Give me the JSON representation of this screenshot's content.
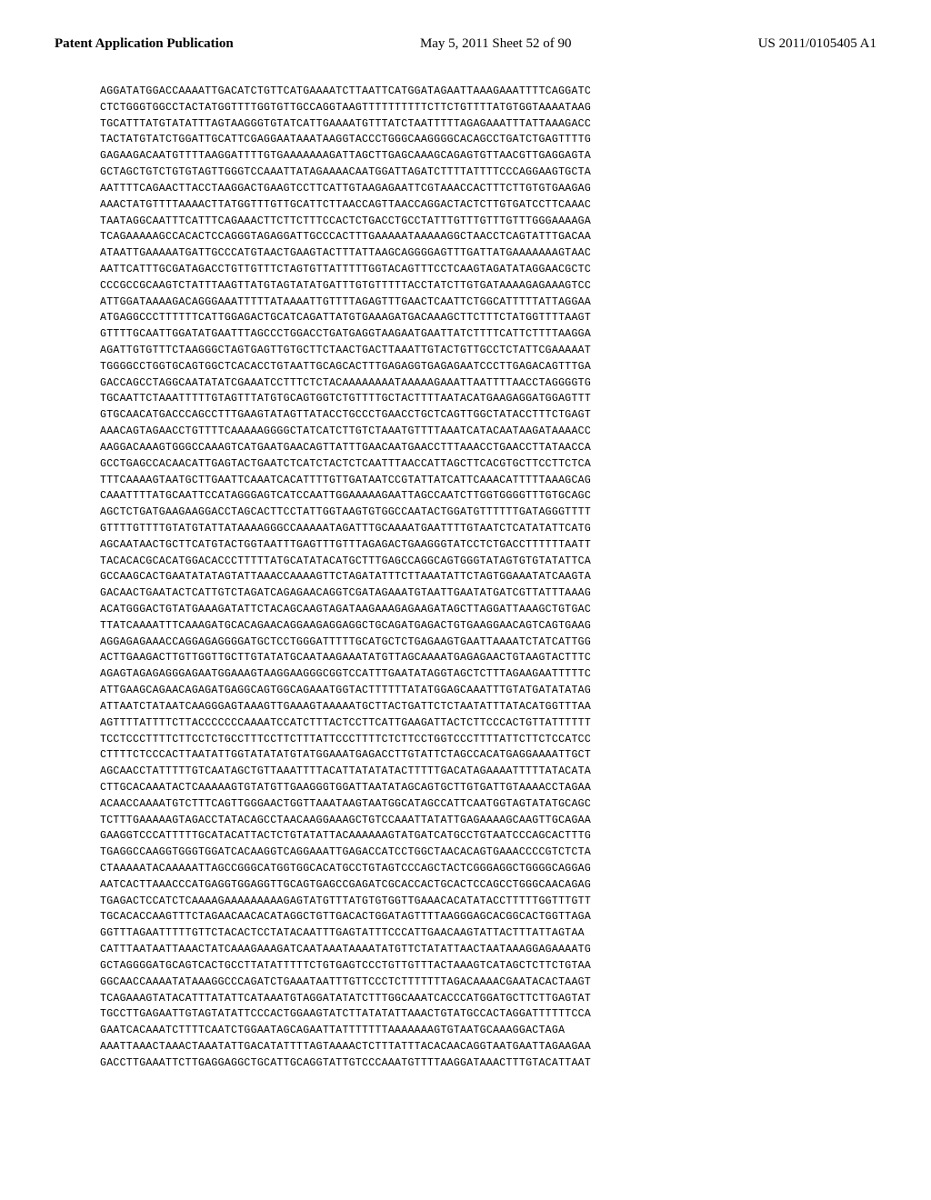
{
  "header": {
    "left": "Patent Application Publication",
    "center": "May 5, 2011  Sheet 52 of 90",
    "right": "US 2011/0105405 A1"
  },
  "sequence": {
    "font_family": "Courier New",
    "font_size": 11.5,
    "line_height": 1.55,
    "color": "#000000",
    "background": "#ffffff",
    "lines": [
      "AGGATATGGACCAAAATTGACATCTGTTCATGAAAATCTTAATTCATGGATAGAATTAAAGAAATTTTCAGGATC",
      "CTCTGGGTGGCCTACTATGGTTTTGGTGTTGCCAGGTAAGTTTTTTTTTTCTTCTGTTTTATGTGGTAAAATAAG",
      "TGCATTTATGTATATTTAGTAAGGGTGTATCATTGAAAATGTTTATCTAATTTTTAGAGAAATTTATTAAAGACC",
      "TACTATGTATCTGGATTGCATTCGAGGAATAAATAAGGTACCCTGGGCAAGGGGCACAGCCTGATCTGAGTTTTG",
      "GAGAAGACAATGTTTTAAGGATTTTGTGAAAAAAAGATTAGCTTGAGCAAAGCAGAGTGTTAACGTTGAGGAGTA",
      "GCTAGCTGTCTGTGTAGTTGGGTCCAAATTATAGAAAACAATGGATTAGATCTTTTATTTTCCCAGGAAGTGCTA",
      "AATTTTCAGAACTTACCTAAGGACTGAAGTCCTTCATTGTAAGAGAATTCGTAAACCACTTTCTTGTGTGAAGAG",
      "AAACTATGTTTTAAAACTTATGGTTTGTTGCATTCTTAACCAGTTAACCAGGACTACTCTTGTGATCCTTCAAAC",
      "TAATAGGCAATTTCATTTCAGAAACTTCTTCTTTCCACTCTGACCTGCCTATTTGTTTGTTTGTTTGGGAAAAGA",
      "TCAGAAAAAGCCACACTCCAGGGTAGAGGATTGCCCACTTTGAAAAATAAAAAGGCTAACCTCAGTATTTGACAA",
      "ATAATTGAAAAATGATTGCCCATGTAACTGAAGTACTTTATTAAGCAGGGGAGTTTGATTATGAAAAAAAGTAAC",
      "AATTCATTTGCGATAGACCTGTTGTTTCTAGTGTTATTTTTGGTACAGTTTCCTCAAGTAGATATAGGAACGCTC",
      "CCCGCCGCAAGTCTATTTAAGTTATGTAGTATATGATTTGTGTTTTTACCTATCTTGTGATAAAAGAGAAAGTCC",
      "ATTGGATAAAAGACAGGGAAATTTTTATAAAATTGTTTTAGAGTTTGAACTCAATTCTGGCATTTTTATTAGGAA",
      "ATGAGGCCCTTTTTTCATTGGAGACTGCATCAGATTATGTGAAAGATGACAAAGCTTCTTTCTATGGTTTTAAGT",
      "GTTTTGCAATTGGATATGAATTTAGCCCTGGACCTGATGAGGTAAGAATGAATTATCTTTTCATTCTTTTAAGGA",
      "AGATTGTGTTTCTAAGGGCTAGTGAGTTGTGCTTCTAACTGACTTAAATTGTACTGTTGCCTCTATTCGAAAAAT",
      "TGGGGCCTGGTGCAGTGGCTCACACCTGTAATTGCAGCACTTTGAGAGGTGAGAGAATCCCTTGAGACAGTTTGA",
      "GACCAGCCTAGGCAATATATCGAAATCCTTTCTCTACAAAAAAAATAAAAAGAAATTAATTTTAACCTAGGGGTG",
      "TGCAATTCTAAATTTTTGTAGTTTATGTGCAGTGGTCTGTTTTGCTACTTTTAATACATGAAGAGGATGGAGTTT",
      "GTGCAACATGACCCAGCCTTTGAAGTATAGTTATACCTGCCCTGAACCTGCTCAGTTGGCTATACCTTTCTGAGT",
      "AAACAGTAGAACCTGTTTTCAAAAAGGGGCTATCATCTTGTCTAAATGTTTTAAATCATACAATAAGATAAAACC",
      "AAGGACAAAGTGGGCCAAAGTCATGAATGAACAGTTATTTGAACAATGAACCTTTAAACCTGAACCTTATAACCA",
      "GCCTGAGCCACAACATTGAGTACTGAATCTCATCTACTCTCAATTTAACCATTAGCTTCACGTGCTTCCTTCTCA",
      "TTTCAAAAGTAATGCTTGAATTCAAATCACATTTTGTTGATAATCCGTATTATCATTCAAACATTTTTAAAGCAG",
      "CAAATTTTATGCAATTCCATAGGGAGTCATCCAATTGGAAAAAGAATTAGCCAATCTTGGTGGGGTTTGTGCAGC",
      "AGCTCTGATGAAGAAGGACCTAGCACTTCCTATTGGTAAGTGTGGCCAATACTGGATGTTTTTTGATAGGGTTTT",
      "GTTTTGTTTTGTATGTATTATAAAAGGGCCAAAAATAGATTTGCAAAATGAATTTTGTAATCTCATATATTCATG",
      "AGCAATAACTGCTTCATGTACTGGTAATTTGAGTTTGTTTAGAGACTGAAGGGTATCCTCTGACCTTTTTTAATT",
      "TACACACGCACATGGACACCCTTTTTATGCATATACATGCTTTGAGCCAGGCAGTGGGTATAGTGTGTATATTCA",
      "GCCAAGCACTGAATATATAGTATTAAACCAAAAGTTCTAGATATTTCTTAAATATTCTAGTGGAAATATCAAGTA",
      "GACAACTGAATACTCATTGTCTAGATCAGAGAACAGGTCGATAGAAATGTAATTGAATATGATCGTTATTTAAAG",
      "ACATGGGACTGTATGAAAGATATTCTACAGCAAGTAGATAAGAAAGAGAAGATAGCTTAGGATTAAAGCTGTGAC",
      "TTATCAAAATTTCAAAGATGCACAGAACAGGAAGAGGAGGCTGCAGATGAGACTGTGAAGGAACAGTCAGTGAAG",
      "AGGAGAGAAACCAGGAGAGGGGATGCTCCTGGGATTTTTGCATGCTCTGAGAAGTGAATTAAAATCTATCATTGG",
      "ACTTGAAGACTTGTTGGTTGCTTGTATATGCAATAAGAAATATGTTAGCAAAATGAGAGAACTGTAAGTACTTTC",
      "AGAGTAGAGAGGGAGAATGGAAAGTAAGGAAGGGCGGTCCATTTGAATATAGGTAGCTCTTTAGAAGAATTTTTC",
      "ATTGAAGCAGAACAGAGATGAGGCAGTGGCAGAAATGGTACTTTTTTATATGGAGCAAATTTGTATGATATATAG",
      "ATTAATCTATAATCAAGGGAGTAAAGTTGAAAGTAAAAATGCTTACTGATTCTCTAATATTTATACATGGTTTAA",
      "AGTTTTATTTTCTTACCCCCCCAAAATCCATCTTTACTCCTTCATTGAAGATTACTCTTCCCACTGTTATTTTTT",
      "TCCTCCCTTTTCTTCCTCTGCCTTTCCTTCTTTATTCCCTTTTCTCTTCCTGGTCCCTTTTATTCTTCTCCATCC",
      "CTTTTCTCCCACTTAATATTGGTATATATGTATGGAAATGAGACCTTGTATTCTAGCCACATGAGGAAAATTGCT",
      "AGCAACCTATTTTTGTCAATAGCTGTTAAATTTTACATTATATATACTTTTTGACATAGAAAATTTTTATACATA",
      "CTTGCACAAATACTCAAAAAGTGTATGTTGAAGGGTGGATTAATATAGCAGTGCTTGTGATTGTAAAACCTAGAA",
      "ACAACCAAAATGTCTTTCAGTTGGGAACTGGTTAAATAAGTAATGGCATAGCCATTCAATGGTAGTATATGCAGC",
      "TCTTTGAAAAAGTAGACCTATACAGCCTAACAAGGAAAGCTGTCCAAATTATATTGAGAAAAGCAAGTTGCAGAA",
      "GAAGGTCCCATTTTTGCATACATTACTCTGTATATTACAAAAAAGTATGATCATGCCTGTAATCCCAGCACTTTG",
      "TGAGGCCAAGGTGGGTGGATCACAAGGTCAGGAAATTGAGACCATCCTGGCTAACACAGTGAAACCCCGTCTCTA",
      "CTAAAAATACAAAAATTAGCCGGGCATGGTGGCACATGCCTGTAGTCCCAGCTACTCGGGAGGCTGGGGCAGGAG",
      "AATCACTTAAACCCATGAGGTGGAGGTTGCAGTGAGCCGAGATCGCACCACTGCACTCCAGCCTGGGCAACAGAG",
      "TGAGACTCCATCTCAAAAGAAAAAAAAAGAGTATGTTTATGTGTGGTTGAAACACATATACCTTTTTGGTTTGTT",
      "TGCACACCAAGTTTCTAGAACAACACATAGGCTGTTGACACTGGATAGTTTTAAGGGAGCACGGCACTGGTTAGA",
      "GGTTTAGAATTTTTGTTCTACACTCCTATACAATTTGAGTATTTCCCATTGAACAAGTATTACTTTATTAGTAA",
      "CATTTAATAATTAAACTATCAAAGAAAGATCAATAAATAAAATATGTTCTATATTAACTAATAAAGGAGAAAATG",
      "GCTAGGGGATGCAGTCACTGCCTTATATTTTTCTGTGAGTCCCTGTTGTTTACTAAAGTCATAGCTCTTCTGTAA",
      "GGCAACCAAAATATAAAGGCCCAGATCTGAAATAATTTGTTCCCTCTTTTTTTAGACAAAACGAATACACTAAGT",
      "TCAGAAAGTATACATTTATATTCATAAATGTAGGATATATCTTTGGCAAATCACCCATGGATGCTTCTTGAGTAT",
      "TGCCTTGAGAATTGTAGTATATTCCCACTGGAAGTATCTTATATATTAAACTGTATGCCACTAGGATTTTTTCCA",
      "GAATCACAAATCTTTTCAATCTGGAATAGCAGAATTATTTTTTTAAAAAAAGTGTAATGCAAAGGACTAGA",
      "AAATTAAACTAAACTAAATATTGACATATTTTAGTAAAACTCTTTATTTACACAACAGGTAATGAATTAGAAGAA",
      "GACCTTGAAATTCTTGAGGAGGCTGCATTGCAGGTATTGTCCCAAATGTTTTAAGGATAAACTTTGTACATTAAT"
    ]
  }
}
